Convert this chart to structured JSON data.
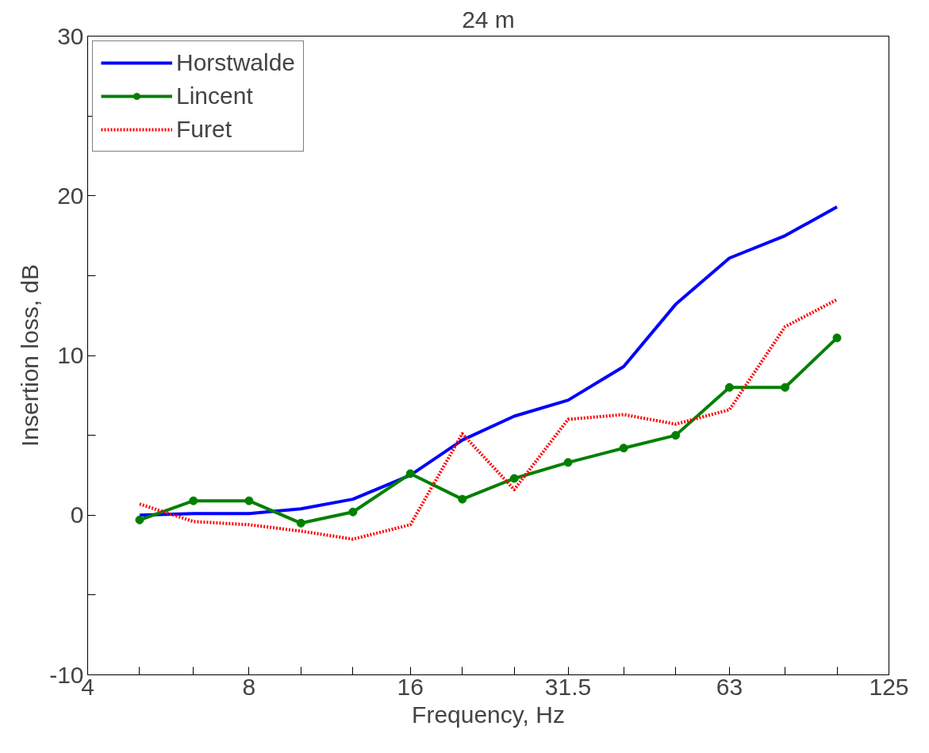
{
  "chart_data": {
    "type": "line",
    "title": "24 m",
    "xlabel": "Frequency, Hz",
    "ylabel": "Insertion loss, dB",
    "x": [
      5,
      6.3,
      8,
      10,
      12.5,
      16,
      20,
      25,
      31.5,
      40,
      50,
      63,
      80,
      100
    ],
    "log": "x",
    "xlim": [
      4,
      125
    ],
    "ylim": [
      -10,
      30
    ],
    "xticks": [
      4,
      {
        "value": 5,
        "label": null
      },
      {
        "value": 6.3,
        "label": null
      },
      8,
      {
        "value": 10,
        "label": null
      },
      {
        "value": 12.5,
        "label": null
      },
      16,
      {
        "value": 20,
        "label": null
      },
      {
        "value": 25,
        "label": null
      },
      31.5,
      {
        "value": 40,
        "label": null
      },
      {
        "value": 50,
        "label": null
      },
      63,
      {
        "value": 80,
        "label": null
      },
      {
        "value": 100,
        "label": null
      },
      125
    ],
    "yticks": [
      -10,
      {
        "value": -5,
        "label": null
      },
      0,
      {
        "value": 5,
        "label": null
      },
      10,
      {
        "value": 15,
        "label": null
      },
      20,
      {
        "value": 25,
        "label": null
      },
      30
    ],
    "grid": false,
    "legend": "top left",
    "series": [
      {
        "name": "Horstwalde",
        "color": "#0000ff",
        "marker": "none",
        "line_style": "solid",
        "values": [
          0,
          0.1,
          0.1,
          0.4,
          1.0,
          2.5,
          4.7,
          6.2,
          7.2,
          9.3,
          13.2,
          16.1,
          17.5,
          19.3
        ]
      },
      {
        "name": "Lincent",
        "color": "#008000",
        "marker": "circle",
        "line_style": "solid",
        "values": [
          -0.3,
          0.9,
          0.9,
          -0.5,
          0.2,
          2.6,
          1.0,
          2.3,
          3.3,
          4.2,
          5.0,
          8.0,
          8.0,
          11.1
        ]
      },
      {
        "name": "Furet",
        "color": "#ff0000",
        "marker": "none",
        "line_style": "dotted",
        "values": [
          0.7,
          -0.4,
          -0.6,
          -1.0,
          -1.5,
          -0.6,
          5.1,
          1.6,
          6.0,
          6.3,
          5.7,
          6.6,
          11.8,
          13.5
        ]
      }
    ]
  }
}
